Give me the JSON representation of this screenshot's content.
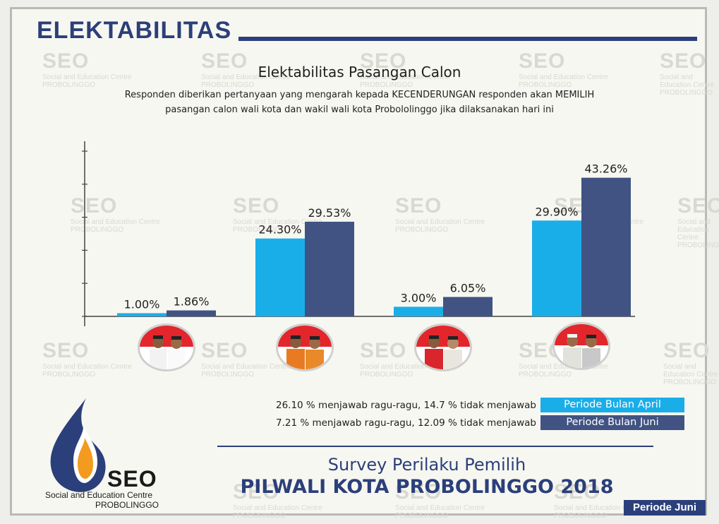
{
  "header": {
    "title": "ELEKTABILITAS"
  },
  "watermark": {
    "brand": "SEO",
    "line1": "Social and Education Centre",
    "line2": "PROBOLINGGO"
  },
  "chart_data": {
    "type": "bar",
    "title": "Elektabilitas Pasangan Calon",
    "subtitle_lines": [
      "Responden diberikan pertanyaan yang mengarah kepada KECENDERUNGAN responden akan MEMILIH",
      "pasangan calon wali kota dan wakil wali kota Probololinggo jika dilaksanakan hari ini"
    ],
    "categories": [
      "",
      "",
      "",
      ""
    ],
    "series": [
      {
        "name": "Periode Bulan April",
        "color": "#1aaee9",
        "values": [
          1.0,
          24.3,
          3.0,
          29.9
        ],
        "labels": [
          "1.00%",
          "24.30%",
          "3.00%",
          "29.90%"
        ]
      },
      {
        "name": "Periode Bulan Juni",
        "color": "#415383",
        "values": [
          1.86,
          29.53,
          6.05,
          43.26
        ],
        "labels": [
          "1.86%",
          "29.53%",
          "6.05%",
          "43.26%"
        ]
      }
    ],
    "ylim": [
      0,
      50
    ],
    "legend_position": "bottom-right",
    "grid": false
  },
  "notes": [
    "26.10 % menjawab ragu-ragu, 14.7 % tidak menjawab",
    "7.21 % menjawab ragu-ragu, 12.09 % tidak menjawab"
  ],
  "legend": {
    "april": "Periode Bulan April",
    "juni": "Periode Bulan Juni"
  },
  "survey": {
    "line1": "Survey Perilaku Pemilih",
    "line2": "PILWALI KOTA PROBOLINGGO 2018"
  },
  "periode_badge": "Periode Juni",
  "logo": {
    "brand": "SEO",
    "line1": "Social and Education Centre",
    "line2": "PROBOLINGGO"
  }
}
